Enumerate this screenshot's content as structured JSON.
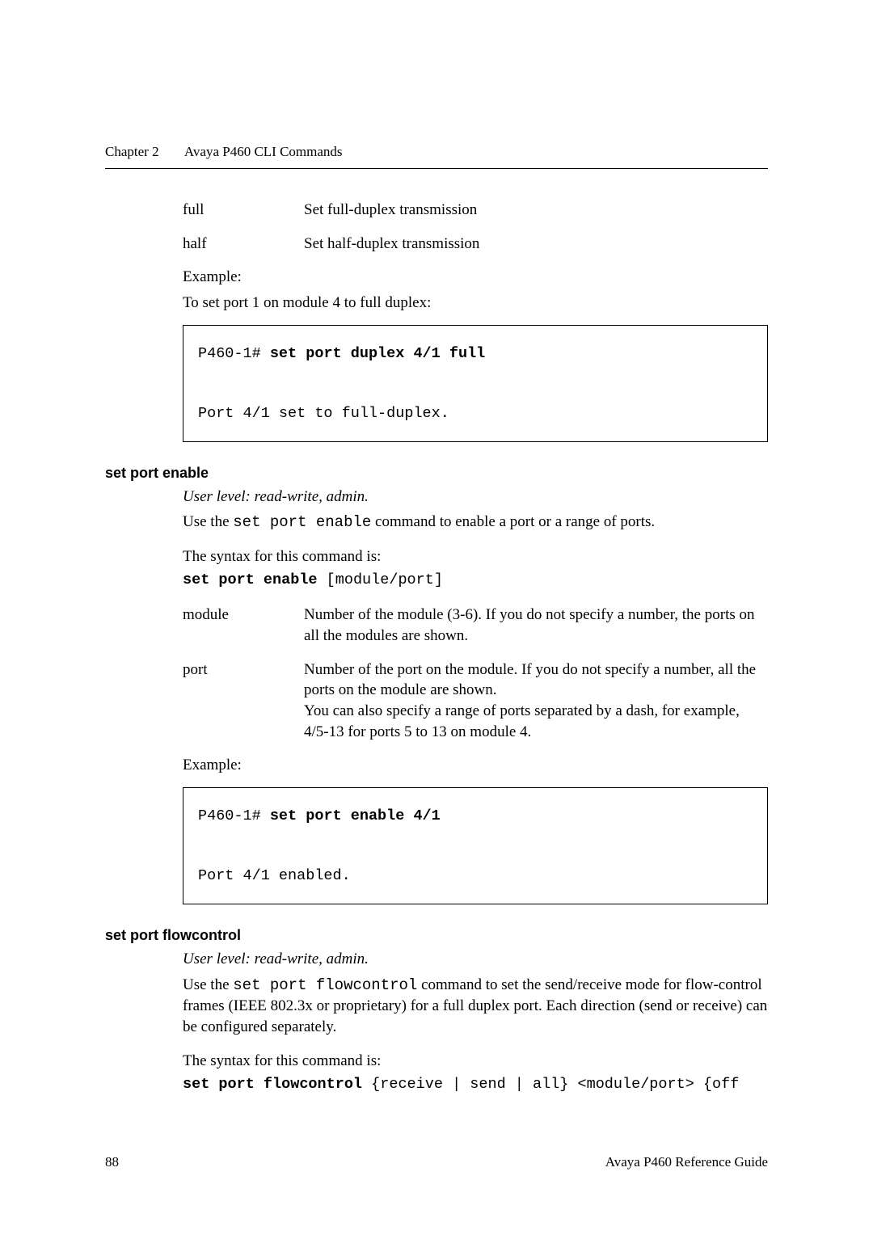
{
  "header": {
    "chapter_label": "Chapter 2",
    "chapter_title": "Avaya P460 CLI Commands"
  },
  "full_half": {
    "rows": [
      {
        "term": "full",
        "desc": "Set full-duplex transmission"
      },
      {
        "term": "half",
        "desc": "Set half-duplex transmission"
      }
    ]
  },
  "duplex_example": {
    "label": "Example:",
    "intro": "To set port 1 on module 4 to full duplex:",
    "prompt": "P460-1# ",
    "cmd": "set port duplex 4/1 full",
    "output": "Port 4/1 set to full-duplex."
  },
  "enable": {
    "heading": "set port enable",
    "userlevel": "User level: read-write, admin.",
    "desc_pre": "Use the ",
    "desc_code": "set port enable",
    "desc_post": " command to enable a port or a range of ports.",
    "syntax_label": "The syntax for this command is:",
    "syntax_kw": "set port enable",
    "syntax_arg": " [module/port]",
    "params": [
      {
        "term": "module",
        "desc": "Number of the module (3-6). If you do not specify a number, the ports on all the modules are shown."
      },
      {
        "term": "port",
        "desc": "Number of the port on the module. If you do not specify a number, all the ports on the module are shown.\nYou can also specify a range of ports separated by a dash, for example, 4/5-13 for ports 5 to 13 on module 4."
      }
    ],
    "example_label": "Example:",
    "prompt": "P460-1# ",
    "cmd": "set port enable 4/1",
    "output": "Port 4/1 enabled."
  },
  "flowcontrol": {
    "heading": "set port flowcontrol",
    "userlevel": "User level: read-write, admin.",
    "desc_pre": "Use the ",
    "desc_code": "set port flowcontrol",
    "desc_post": " command to set the send/receive mode for flow-control frames (IEEE 802.3x or proprietary) for a full duplex port. Each direction (send or receive) can be configured separately.",
    "syntax_label": "The syntax for this command is:",
    "syntax_kw": "set port flowcontrol",
    "syntax_arg": " {receive | send | all} <module/port> {off"
  },
  "footer": {
    "page": "88",
    "doc": "Avaya P460 Reference Guide"
  }
}
